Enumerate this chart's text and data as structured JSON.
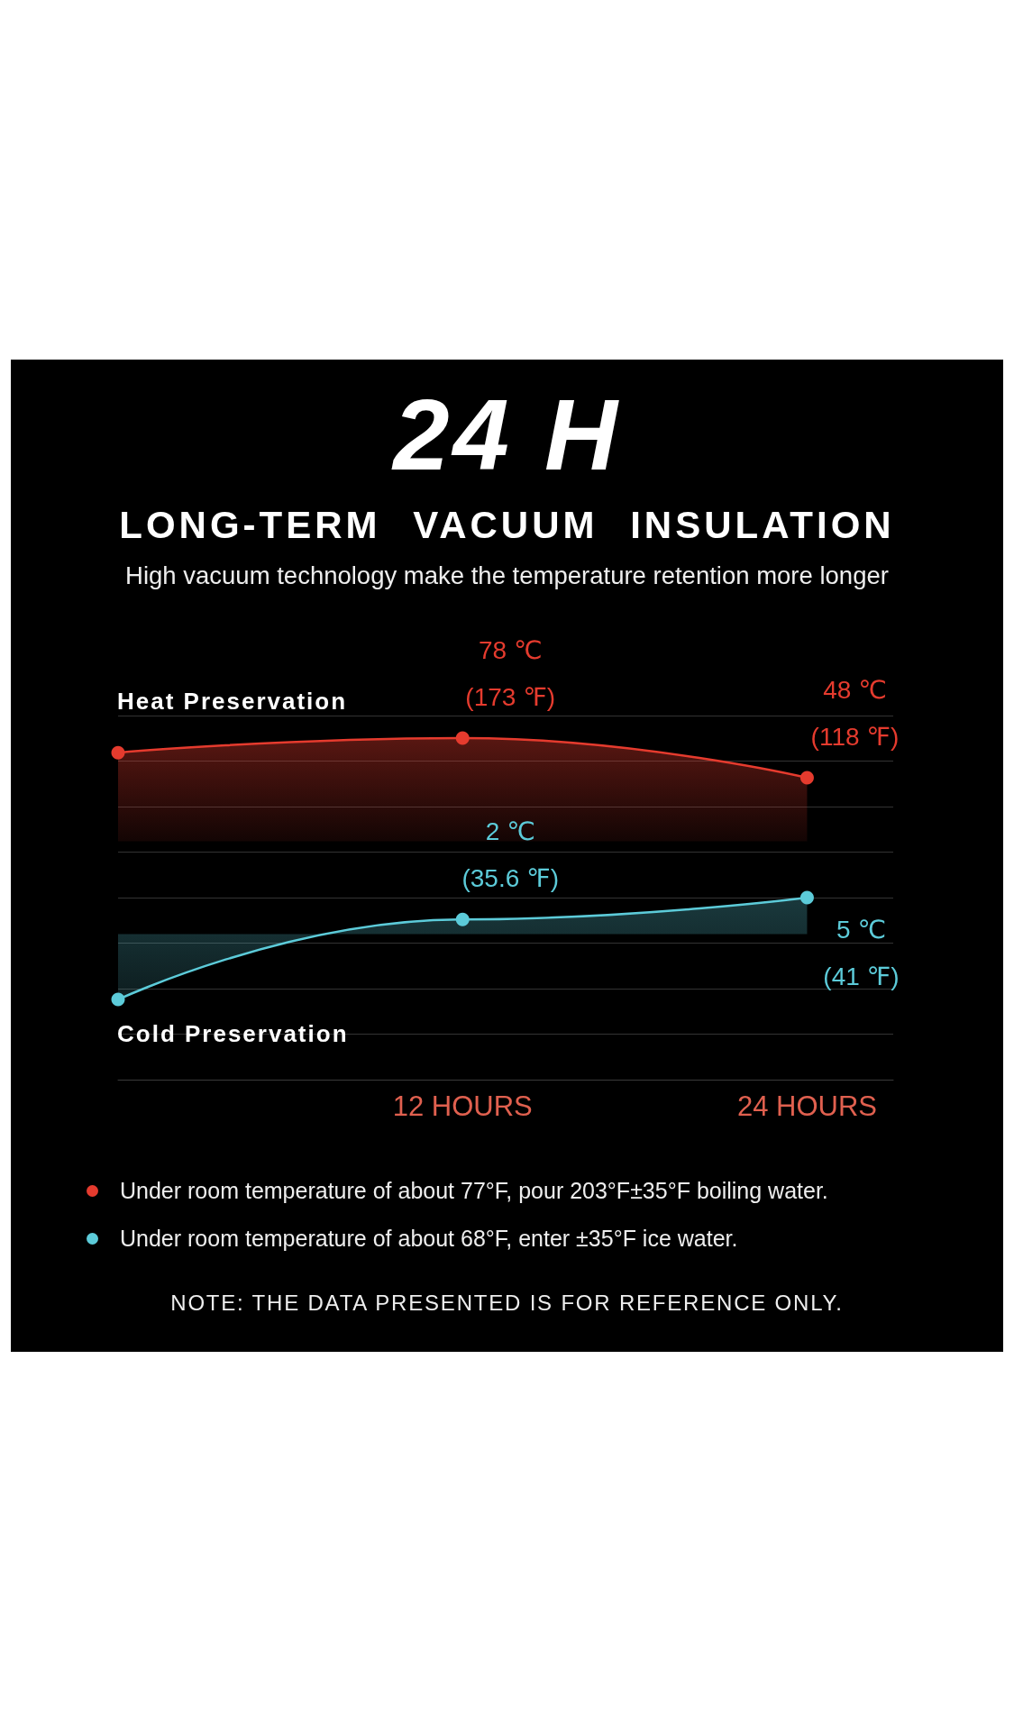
{
  "chart_data": {
    "type": "area",
    "title": "24 H",
    "subtitle": "LONG-TERM VACUUM INSULATION",
    "annotations": [
      "High vacuum technology make the temperature retention more longer",
      "Under room temperature of about 77°F, pour 203°F±35°F boiling water.",
      "Under room temperature of about 68°F, enter ±35°F ice water.",
      "NOTE: THE DATA PRESENTED IS FOR REFERENCE ONLY."
    ],
    "x": [
      0,
      12,
      24
    ],
    "xlim": [
      0,
      27
    ],
    "xticks": [
      {
        "value": 12,
        "label": "12 HOURS"
      },
      {
        "value": 24,
        "label": "24 HOURS"
      }
    ],
    "ylim": [
      -180,
      95
    ],
    "y2lim": [
      -20,
      30
    ],
    "series": [
      {
        "name": "Heat Preservation",
        "color": "#e53b2e",
        "values": [
          67,
          78,
          48
        ],
        "value_labels": [
          null,
          "78 ℃\n(173 ℉)",
          "48 ℃\n(118 ℉)"
        ]
      },
      {
        "name": "Cold Preservation",
        "color": "#5ccbd9",
        "axis": "y2",
        "values": [
          -9,
          2,
          5
        ],
        "value_labels": [
          null,
          "2 ℃\n(35.6 ℉)",
          "5 ℃\n(41 ℉)"
        ]
      }
    ],
    "grid": "y",
    "legend": false,
    "marker": "circle",
    "line_style": "solid"
  }
}
